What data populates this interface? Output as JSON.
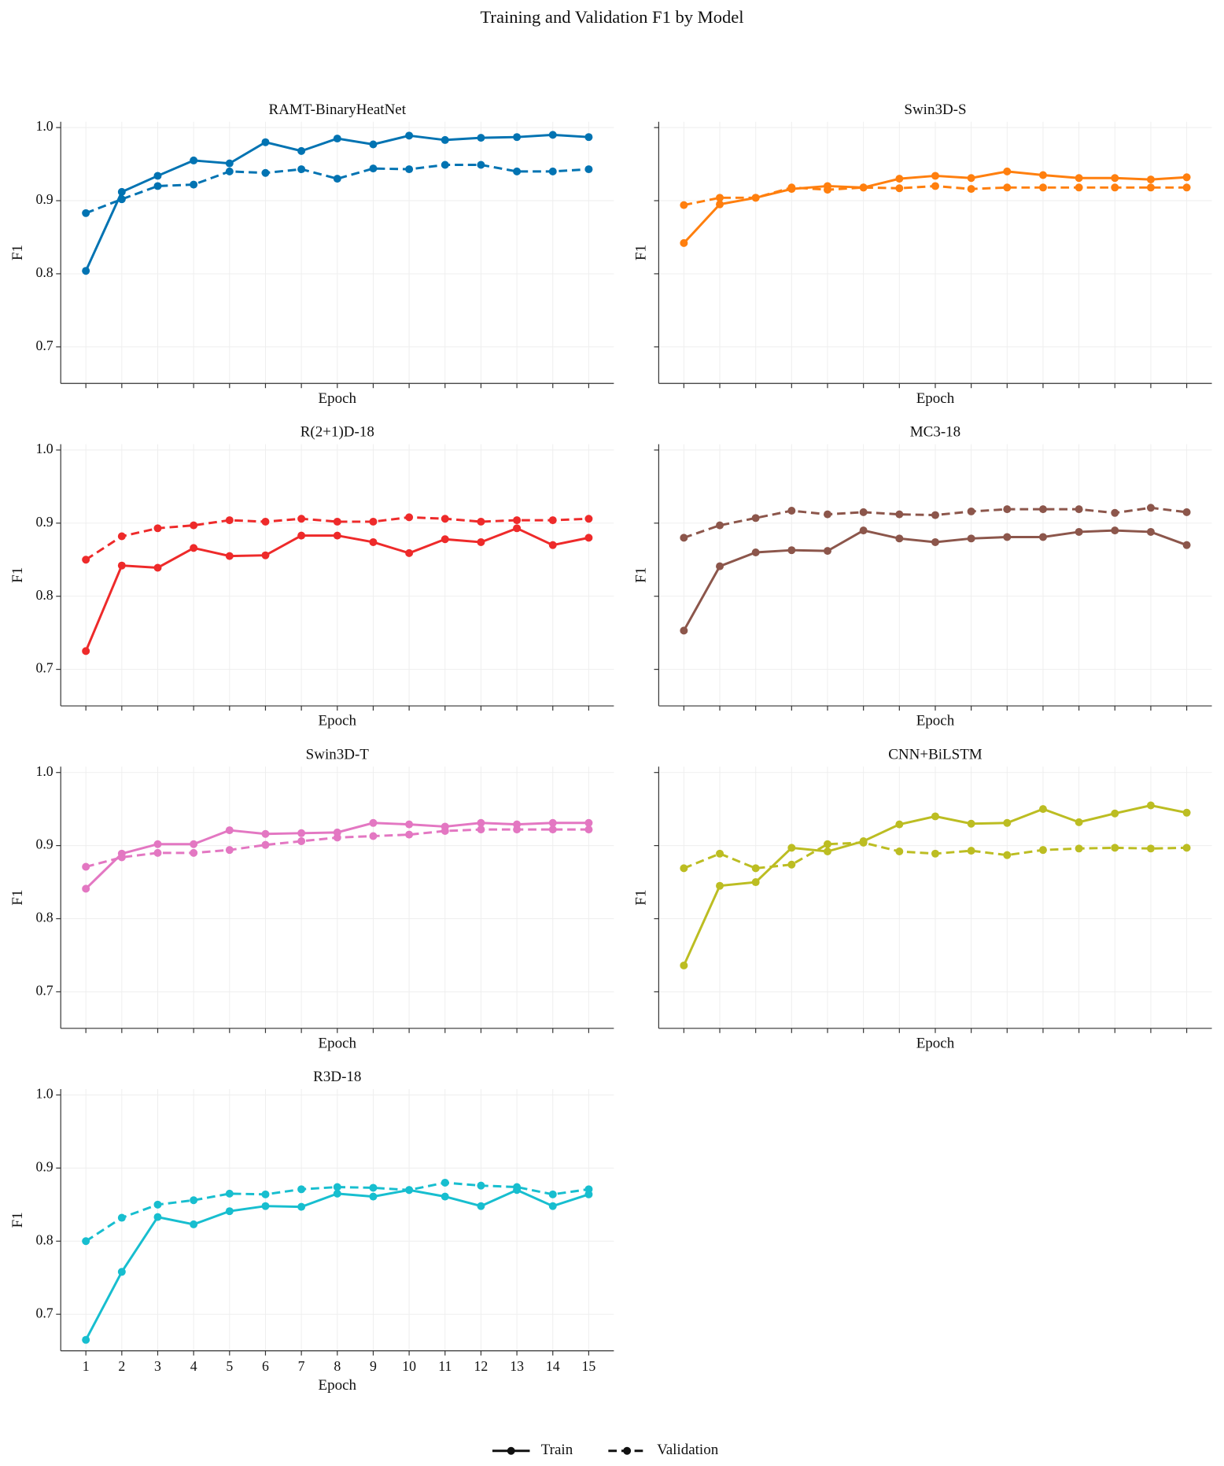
{
  "title": "Training and Validation F1 by Model",
  "legend_position": "bottom",
  "chart_data": [
    {
      "type": "line",
      "title": "RAMT-BinaryHeatNet",
      "xlabel": "Epoch",
      "ylabel": "F1",
      "x": [
        1,
        2,
        3,
        4,
        5,
        6,
        7,
        8,
        9,
        10,
        11,
        12,
        13,
        14,
        15
      ],
      "series": [
        {
          "name": "Train",
          "color": "#0173b2",
          "linestyle": "solid",
          "values": [
            0.804,
            0.912,
            0.934,
            0.955,
            0.951,
            0.98,
            0.968,
            0.985,
            0.977,
            0.989,
            0.983,
            0.986,
            0.987,
            0.99,
            0.987
          ]
        },
        {
          "name": "Validation",
          "color": "#0173b2",
          "linestyle": "dashed",
          "values": [
            0.883,
            0.902,
            0.92,
            0.922,
            0.94,
            0.938,
            0.943,
            0.93,
            0.944,
            0.943,
            0.949,
            0.949,
            0.94,
            0.94,
            0.943
          ]
        }
      ],
      "xlim": [
        0.3,
        15.7
      ],
      "xticks": [
        1,
        2,
        3,
        4,
        5,
        6,
        7,
        8,
        9,
        10,
        11,
        12,
        13,
        14,
        15
      ],
      "ylim": [
        0.65,
        1.008
      ],
      "yticks": [
        0.7,
        0.8,
        0.9,
        {
          "value": 1,
          "label": "1.0"
        }
      ],
      "grid": true,
      "show_xtick_labels": false,
      "show_ytick_labels": true
    },
    {
      "type": "line",
      "title": "Swin3D-S",
      "xlabel": "Epoch",
      "ylabel": "F1",
      "x": [
        1,
        2,
        3,
        4,
        5,
        6,
        7,
        8,
        9,
        10,
        11,
        12,
        13,
        14,
        15
      ],
      "series": [
        {
          "name": "Train",
          "color": "#ff7f0e",
          "linestyle": "solid",
          "values": [
            0.842,
            0.895,
            0.904,
            0.916,
            0.92,
            0.918,
            0.93,
            0.934,
            0.931,
            0.94,
            0.935,
            0.931,
            0.931,
            0.929,
            0.932
          ]
        },
        {
          "name": "Validation",
          "color": "#ff7f0e",
          "linestyle": "dashed",
          "values": [
            0.894,
            0.904,
            0.904,
            0.918,
            0.915,
            0.918,
            0.917,
            0.92,
            0.916,
            0.918,
            0.918,
            0.918,
            0.918,
            0.918,
            0.918
          ]
        }
      ],
      "xlim": [
        0.3,
        15.7
      ],
      "xticks": [
        1,
        2,
        3,
        4,
        5,
        6,
        7,
        8,
        9,
        10,
        11,
        12,
        13,
        14,
        15
      ],
      "ylim": [
        0.65,
        1.008
      ],
      "yticks": [
        0.7,
        0.8,
        0.9,
        {
          "value": 1,
          "label": "1.0"
        }
      ],
      "grid": true,
      "show_xtick_labels": false,
      "show_ytick_labels": false
    },
    {
      "type": "line",
      "title": "R(2+1)D-18",
      "xlabel": "Epoch",
      "ylabel": "F1",
      "x": [
        1,
        2,
        3,
        4,
        5,
        6,
        7,
        8,
        9,
        10,
        11,
        12,
        13,
        14,
        15
      ],
      "series": [
        {
          "name": "Train",
          "color": "#ee2a2a",
          "linestyle": "solid",
          "values": [
            0.725,
            0.842,
            0.839,
            0.866,
            0.855,
            0.856,
            0.883,
            0.883,
            0.874,
            0.859,
            0.878,
            0.874,
            0.893,
            0.87,
            0.88
          ]
        },
        {
          "name": "Validation",
          "color": "#ee2a2a",
          "linestyle": "dashed",
          "values": [
            0.85,
            0.882,
            0.893,
            0.897,
            0.904,
            0.902,
            0.906,
            0.902,
            0.902,
            0.908,
            0.906,
            0.902,
            0.904,
            0.904,
            0.906
          ]
        }
      ],
      "xlim": [
        0.3,
        15.7
      ],
      "xticks": [
        1,
        2,
        3,
        4,
        5,
        6,
        7,
        8,
        9,
        10,
        11,
        12,
        13,
        14,
        15
      ],
      "ylim": [
        0.65,
        1.008
      ],
      "yticks": [
        0.7,
        0.8,
        0.9,
        {
          "value": 1,
          "label": "1.0"
        }
      ],
      "grid": true,
      "show_xtick_labels": false,
      "show_ytick_labels": true
    },
    {
      "type": "line",
      "title": "MC3-18",
      "xlabel": "Epoch",
      "ylabel": "F1",
      "x": [
        1,
        2,
        3,
        4,
        5,
        6,
        7,
        8,
        9,
        10,
        11,
        12,
        13,
        14,
        15
      ],
      "series": [
        {
          "name": "Train",
          "color": "#8c564b",
          "linestyle": "solid",
          "values": [
            0.753,
            0.841,
            0.86,
            0.863,
            0.862,
            0.89,
            0.879,
            0.874,
            0.879,
            0.881,
            0.881,
            0.888,
            0.89,
            0.888,
            0.87
          ]
        },
        {
          "name": "Validation",
          "color": "#8c564b",
          "linestyle": "dashed",
          "values": [
            0.88,
            0.897,
            0.907,
            0.917,
            0.912,
            0.915,
            0.912,
            0.911,
            0.916,
            0.919,
            0.919,
            0.919,
            0.914,
            0.921,
            0.915
          ]
        }
      ],
      "xlim": [
        0.3,
        15.7
      ],
      "xticks": [
        1,
        2,
        3,
        4,
        5,
        6,
        7,
        8,
        9,
        10,
        11,
        12,
        13,
        14,
        15
      ],
      "ylim": [
        0.65,
        1.008
      ],
      "yticks": [
        0.7,
        0.8,
        0.9,
        {
          "value": 1,
          "label": "1.0"
        }
      ],
      "grid": true,
      "show_xtick_labels": false,
      "show_ytick_labels": false
    },
    {
      "type": "line",
      "title": "Swin3D-T",
      "xlabel": "Epoch",
      "ylabel": "F1",
      "x": [
        1,
        2,
        3,
        4,
        5,
        6,
        7,
        8,
        9,
        10,
        11,
        12,
        13,
        14,
        15
      ],
      "series": [
        {
          "name": "Train",
          "color": "#e377c2",
          "linestyle": "solid",
          "values": [
            0.841,
            0.889,
            0.902,
            0.902,
            0.921,
            0.916,
            0.917,
            0.918,
            0.931,
            0.929,
            0.926,
            0.931,
            0.929,
            0.931,
            0.931
          ]
        },
        {
          "name": "Validation",
          "color": "#e377c2",
          "linestyle": "dashed",
          "values": [
            0.871,
            0.884,
            0.89,
            0.89,
            0.894,
            0.901,
            0.906,
            0.911,
            0.913,
            0.915,
            0.92,
            0.922,
            0.922,
            0.922,
            0.922
          ]
        }
      ],
      "xlim": [
        0.3,
        15.7
      ],
      "xticks": [
        1,
        2,
        3,
        4,
        5,
        6,
        7,
        8,
        9,
        10,
        11,
        12,
        13,
        14,
        15
      ],
      "ylim": [
        0.65,
        1.008
      ],
      "yticks": [
        0.7,
        0.8,
        0.9,
        {
          "value": 1,
          "label": "1.0"
        }
      ],
      "grid": true,
      "show_xtick_labels": false,
      "show_ytick_labels": true
    },
    {
      "type": "line",
      "title": "CNN+BiLSTM",
      "xlabel": "Epoch",
      "ylabel": "F1",
      "x": [
        1,
        2,
        3,
        4,
        5,
        6,
        7,
        8,
        9,
        10,
        11,
        12,
        13,
        14,
        15
      ],
      "series": [
        {
          "name": "Train",
          "color": "#bcbd22",
          "linestyle": "solid",
          "values": [
            0.736,
            0.845,
            0.85,
            0.897,
            0.892,
            0.906,
            0.929,
            0.94,
            0.93,
            0.931,
            0.95,
            0.932,
            0.944,
            0.955,
            0.945
          ]
        },
        {
          "name": "Validation",
          "color": "#bcbd22",
          "linestyle": "dashed",
          "values": [
            0.869,
            0.889,
            0.869,
            0.874,
            0.902,
            0.904,
            0.892,
            0.889,
            0.893,
            0.887,
            0.894,
            0.896,
            0.897,
            0.896,
            0.897
          ]
        }
      ],
      "xlim": [
        0.3,
        15.7
      ],
      "xticks": [
        1,
        2,
        3,
        4,
        5,
        6,
        7,
        8,
        9,
        10,
        11,
        12,
        13,
        14,
        15
      ],
      "ylim": [
        0.65,
        1.008
      ],
      "yticks": [
        0.7,
        0.8,
        0.9,
        {
          "value": 1,
          "label": "1.0"
        }
      ],
      "grid": true,
      "show_xtick_labels": false,
      "show_ytick_labels": false
    },
    {
      "type": "line",
      "title": "R3D-18",
      "xlabel": "Epoch",
      "ylabel": "F1",
      "x": [
        1,
        2,
        3,
        4,
        5,
        6,
        7,
        8,
        9,
        10,
        11,
        12,
        13,
        14,
        15
      ],
      "series": [
        {
          "name": "Train",
          "color": "#17becf",
          "linestyle": "solid",
          "values": [
            0.665,
            0.758,
            0.833,
            0.823,
            0.841,
            0.848,
            0.847,
            0.865,
            0.861,
            0.87,
            0.861,
            0.848,
            0.87,
            0.848,
            0.864
          ]
        },
        {
          "name": "Validation",
          "color": "#17becf",
          "linestyle": "dashed",
          "values": [
            0.8,
            0.832,
            0.85,
            0.856,
            0.865,
            0.864,
            0.871,
            0.874,
            0.873,
            0.87,
            0.88,
            0.876,
            0.874,
            0.864,
            0.871
          ]
        }
      ],
      "xlim": [
        0.3,
        15.7
      ],
      "xticks": [
        1,
        2,
        3,
        4,
        5,
        6,
        7,
        8,
        9,
        10,
        11,
        12,
        13,
        14,
        15
      ],
      "ylim": [
        0.65,
        1.008
      ],
      "yticks": [
        0.7,
        0.8,
        0.9,
        {
          "value": 1,
          "label": "1.0"
        }
      ],
      "grid": true,
      "show_xtick_labels": true,
      "show_ytick_labels": true
    }
  ]
}
